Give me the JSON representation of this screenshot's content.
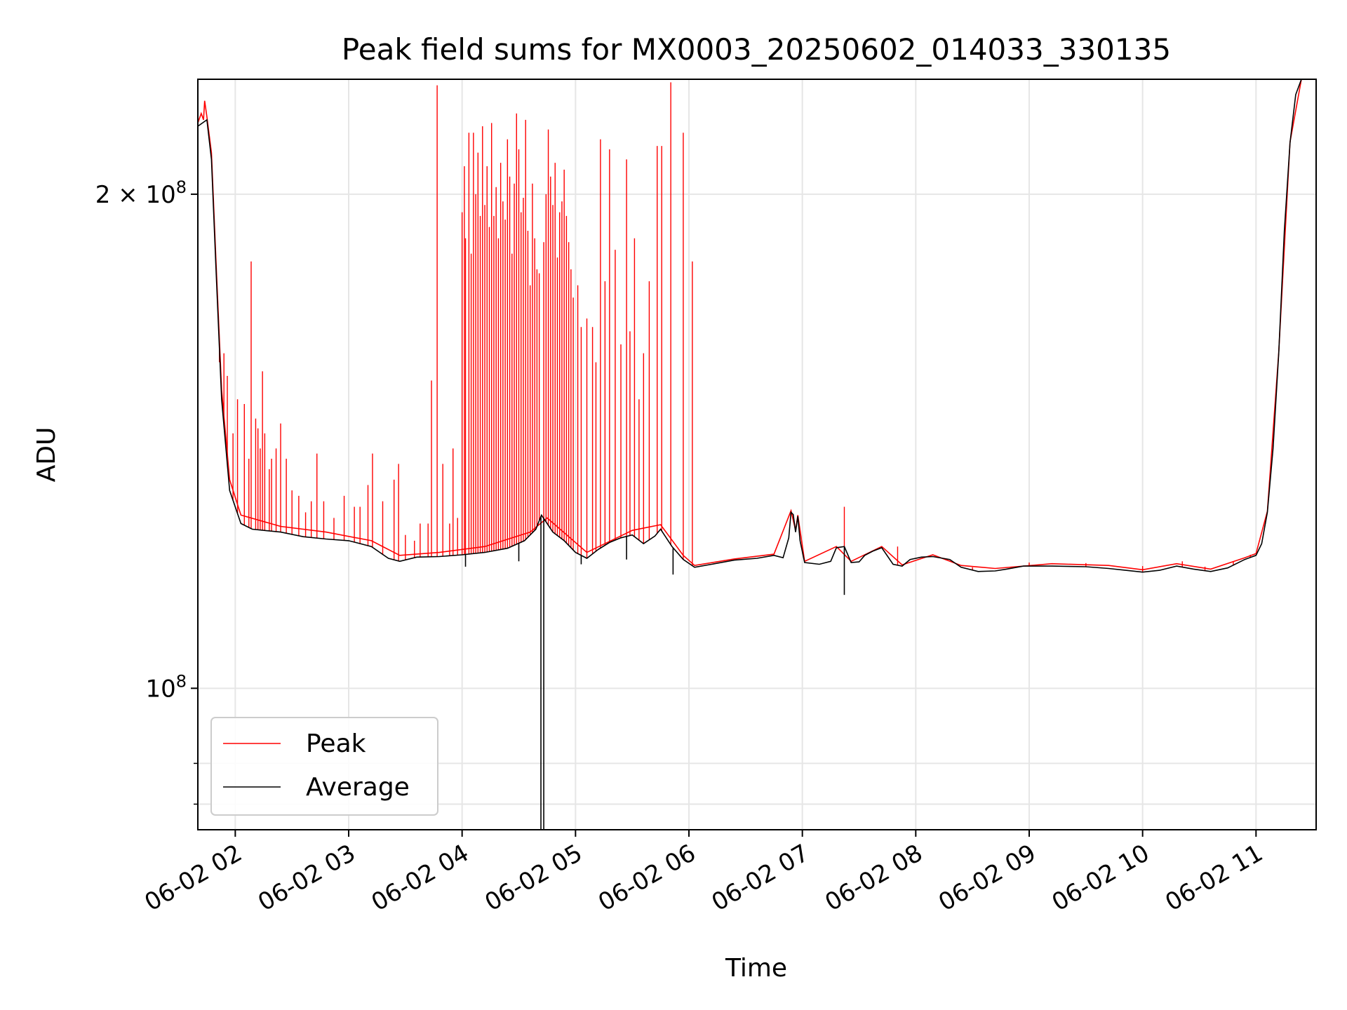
{
  "chart_data": {
    "type": "line",
    "title": "Peak field sums for MX0003_20250602_014033_330135",
    "xlabel": "Time",
    "ylabel": "ADU",
    "yscale": "log",
    "xlim": [
      1.67,
      11.53
    ],
    "ylim": [
      82000000,
      235000000
    ],
    "x_unit": "hours since 06-02 00:00",
    "grid": true,
    "legend_position": "lower-left",
    "x_ticks": [
      {
        "value": 2,
        "label": "06-02 02"
      },
      {
        "value": 3,
        "label": "06-02 03"
      },
      {
        "value": 4,
        "label": "06-02 04"
      },
      {
        "value": 5,
        "label": "06-02 05"
      },
      {
        "value": 6,
        "label": "06-02 06"
      },
      {
        "value": 7,
        "label": "06-02 07"
      },
      {
        "value": 8,
        "label": "06-02 08"
      },
      {
        "value": 9,
        "label": "06-02 09"
      },
      {
        "value": 10,
        "label": "06-02 10"
      },
      {
        "value": 11,
        "label": "06-02 11"
      }
    ],
    "y_major_ticks": [
      {
        "value": 100000000,
        "base": "10",
        "exp": "8",
        "coef": ""
      },
      {
        "value": 200000000,
        "base": "10",
        "exp": "8",
        "coef": "2 × "
      }
    ],
    "y_minor_ticks": [
      90000000,
      85000000
    ],
    "series": [
      {
        "name": "Average",
        "color": "#000000",
        "points": [
          [
            1.67,
            220000000
          ],
          [
            1.75,
            222000000
          ],
          [
            1.79,
            210000000
          ],
          [
            1.83,
            180000000
          ],
          [
            1.88,
            150000000
          ],
          [
            1.95,
            132000000
          ],
          [
            2.05,
            126000000
          ],
          [
            2.15,
            125000000
          ],
          [
            2.4,
            124500000
          ],
          [
            2.6,
            123700000
          ],
          [
            2.8,
            123300000
          ],
          [
            3.0,
            123000000
          ],
          [
            3.2,
            122000000
          ],
          [
            3.35,
            120000000
          ],
          [
            3.45,
            119500000
          ],
          [
            3.6,
            120200000
          ],
          [
            3.8,
            120300000
          ],
          [
            4.0,
            120600000
          ],
          [
            4.2,
            121000000
          ],
          [
            4.4,
            121700000
          ],
          [
            4.55,
            123000000
          ],
          [
            4.65,
            125000000
          ],
          [
            4.7,
            127500000
          ],
          [
            4.75,
            126000000
          ],
          [
            4.8,
            124500000
          ],
          [
            4.9,
            123000000
          ],
          [
            5.0,
            121000000
          ],
          [
            5.1,
            120000000
          ],
          [
            5.2,
            121500000
          ],
          [
            5.3,
            122700000
          ],
          [
            5.4,
            123500000
          ],
          [
            5.5,
            124000000
          ],
          [
            5.6,
            122500000
          ],
          [
            5.7,
            123800000
          ],
          [
            5.75,
            125000000
          ],
          [
            5.85,
            122000000
          ],
          [
            5.95,
            119800000
          ],
          [
            6.05,
            118500000
          ],
          [
            6.2,
            119000000
          ],
          [
            6.4,
            119700000
          ],
          [
            6.6,
            120000000
          ],
          [
            6.75,
            120500000
          ],
          [
            6.83,
            120100000
          ],
          [
            6.88,
            123500000
          ],
          [
            6.9,
            128000000
          ],
          [
            6.92,
            127600000
          ],
          [
            6.94,
            124500000
          ],
          [
            6.96,
            127300000
          ],
          [
            6.98,
            123000000
          ],
          [
            7.02,
            119300000
          ],
          [
            7.15,
            119000000
          ],
          [
            7.25,
            119500000
          ],
          [
            7.3,
            121800000
          ],
          [
            7.37,
            122000000
          ],
          [
            7.43,
            119300000
          ],
          [
            7.5,
            119400000
          ],
          [
            7.55,
            120500000
          ],
          [
            7.62,
            121200000
          ],
          [
            7.7,
            121800000
          ],
          [
            7.8,
            119000000
          ],
          [
            7.88,
            118700000
          ],
          [
            7.95,
            119800000
          ],
          [
            8.05,
            120200000
          ],
          [
            8.15,
            120300000
          ],
          [
            8.3,
            119800000
          ],
          [
            8.4,
            118500000
          ],
          [
            8.55,
            117800000
          ],
          [
            8.7,
            117900000
          ],
          [
            8.8,
            118200000
          ],
          [
            8.95,
            118700000
          ],
          [
            9.2,
            118700000
          ],
          [
            9.5,
            118600000
          ],
          [
            9.7,
            118300000
          ],
          [
            9.85,
            118000000
          ],
          [
            10.0,
            117700000
          ],
          [
            10.15,
            118000000
          ],
          [
            10.3,
            118700000
          ],
          [
            10.45,
            118200000
          ],
          [
            10.6,
            117800000
          ],
          [
            10.75,
            118400000
          ],
          [
            10.9,
            119800000
          ],
          [
            11.0,
            120500000
          ],
          [
            11.05,
            122500000
          ],
          [
            11.1,
            128000000
          ],
          [
            11.15,
            140000000
          ],
          [
            11.2,
            160000000
          ],
          [
            11.25,
            190000000
          ],
          [
            11.3,
            215000000
          ],
          [
            11.35,
            230000000
          ],
          [
            11.4,
            236000000
          ],
          [
            11.53,
            236000000
          ]
        ]
      },
      {
        "name": "Peak",
        "color": "#ff0000",
        "points": [
          [
            1.67,
            221000000
          ],
          [
            1.7,
            224000000
          ],
          [
            1.72,
            222000000
          ],
          [
            1.73,
            228000000
          ],
          [
            1.75,
            223000000
          ],
          [
            1.79,
            212000000
          ],
          [
            1.83,
            182000000
          ],
          [
            1.88,
            152000000
          ],
          [
            1.95,
            134000000
          ],
          [
            2.05,
            127500000
          ],
          [
            2.4,
            125500000
          ],
          [
            2.8,
            124500000
          ],
          [
            3.2,
            123000000
          ],
          [
            3.45,
            120500000
          ],
          [
            3.8,
            121000000
          ],
          [
            4.2,
            122000000
          ],
          [
            4.6,
            124500000
          ],
          [
            4.75,
            127000000
          ],
          [
            5.1,
            121000000
          ],
          [
            5.5,
            124800000
          ],
          [
            5.75,
            125800000
          ],
          [
            5.95,
            120500000
          ],
          [
            6.05,
            118800000
          ],
          [
            6.4,
            119900000
          ],
          [
            6.75,
            120700000
          ],
          [
            6.9,
            128300000
          ],
          [
            6.94,
            124800000
          ],
          [
            6.96,
            127500000
          ],
          [
            7.02,
            119500000
          ],
          [
            7.3,
            122000000
          ],
          [
            7.43,
            119500000
          ],
          [
            7.7,
            122000000
          ],
          [
            7.88,
            118900000
          ],
          [
            8.15,
            120600000
          ],
          [
            8.4,
            118800000
          ],
          [
            8.7,
            118300000
          ],
          [
            9.2,
            119100000
          ],
          [
            9.7,
            118800000
          ],
          [
            10.0,
            118100000
          ],
          [
            10.3,
            119100000
          ],
          [
            10.6,
            118200000
          ],
          [
            10.9,
            120100000
          ],
          [
            11.0,
            120800000
          ],
          [
            11.1,
            128200000
          ],
          [
            11.2,
            160200000
          ],
          [
            11.3,
            215200000
          ],
          [
            11.4,
            236000000
          ],
          [
            11.53,
            236000000
          ]
        ],
        "spikes": [
          [
            1.86,
            158000000
          ],
          [
            1.9,
            160000000
          ],
          [
            1.93,
            155000000
          ],
          [
            1.98,
            143000000
          ],
          [
            2.02,
            150000000
          ],
          [
            2.08,
            149000000
          ],
          [
            2.12,
            138000000
          ],
          [
            2.14,
            182000000
          ],
          [
            2.18,
            146000000
          ],
          [
            2.2,
            144000000
          ],
          [
            2.22,
            140000000
          ],
          [
            2.24,
            156000000
          ],
          [
            2.26,
            143000000
          ],
          [
            2.3,
            136000000
          ],
          [
            2.32,
            138000000
          ],
          [
            2.36,
            140000000
          ],
          [
            2.4,
            145000000
          ],
          [
            2.45,
            138000000
          ],
          [
            2.5,
            132000000
          ],
          [
            2.56,
            131000000
          ],
          [
            2.62,
            128000000
          ],
          [
            2.67,
            130000000
          ],
          [
            2.72,
            139000000
          ],
          [
            2.78,
            130000000
          ],
          [
            2.87,
            127000000
          ],
          [
            2.96,
            131000000
          ],
          [
            3.05,
            129000000
          ],
          [
            3.1,
            129000000
          ],
          [
            3.17,
            133000000
          ],
          [
            3.21,
            139000000
          ],
          [
            3.3,
            130000000
          ],
          [
            3.4,
            134000000
          ],
          [
            3.44,
            137000000
          ],
          [
            3.5,
            124000000
          ],
          [
            3.58,
            123000000
          ],
          [
            3.63,
            126000000
          ],
          [
            3.7,
            126000000
          ],
          [
            3.73,
            154000000
          ],
          [
            3.78,
            233000000
          ],
          [
            3.83,
            137000000
          ],
          [
            3.89,
            126000000
          ],
          [
            3.92,
            140000000
          ],
          [
            3.96,
            127000000
          ],
          [
            4.0,
            195000000
          ],
          [
            4.02,
            208000000
          ],
          [
            4.03,
            188000000
          ],
          [
            4.06,
            218000000
          ],
          [
            4.08,
            184000000
          ],
          [
            4.1,
            218000000
          ],
          [
            4.12,
            200000000
          ],
          [
            4.14,
            212000000
          ],
          [
            4.16,
            194000000
          ],
          [
            4.18,
            220000000
          ],
          [
            4.2,
            197000000
          ],
          [
            4.22,
            208000000
          ],
          [
            4.24,
            191000000
          ],
          [
            4.26,
            221000000
          ],
          [
            4.28,
            194000000
          ],
          [
            4.3,
            202000000
          ],
          [
            4.32,
            188000000
          ],
          [
            4.34,
            209000000
          ],
          [
            4.36,
            198000000
          ],
          [
            4.38,
            193000000
          ],
          [
            4.4,
            216000000
          ],
          [
            4.42,
            205000000
          ],
          [
            4.44,
            184000000
          ],
          [
            4.46,
            203000000
          ],
          [
            4.48,
            224000000
          ],
          [
            4.5,
            213000000
          ],
          [
            4.52,
            195000000
          ],
          [
            4.54,
            199000000
          ],
          [
            4.56,
            222000000
          ],
          [
            4.58,
            190000000
          ],
          [
            4.6,
            176000000
          ],
          [
            4.62,
            203000000
          ],
          [
            4.64,
            188000000
          ],
          [
            4.66,
            180000000
          ],
          [
            4.68,
            179000000
          ],
          [
            4.72,
            187000000
          ],
          [
            4.74,
            200000000
          ],
          [
            4.76,
            219000000
          ],
          [
            4.78,
            205000000
          ],
          [
            4.8,
            197000000
          ],
          [
            4.82,
            209000000
          ],
          [
            4.84,
            183000000
          ],
          [
            4.86,
            195000000
          ],
          [
            4.88,
            198000000
          ],
          [
            4.9,
            207000000
          ],
          [
            4.92,
            194000000
          ],
          [
            4.94,
            187000000
          ],
          [
            4.96,
            180000000
          ],
          [
            4.98,
            173000000
          ],
          [
            5.02,
            176000000
          ],
          [
            5.05,
            166000000
          ],
          [
            5.1,
            168000000
          ],
          [
            5.15,
            166000000
          ],
          [
            5.18,
            158000000
          ],
          [
            5.22,
            216000000
          ],
          [
            5.26,
            177000000
          ],
          [
            5.3,
            213000000
          ],
          [
            5.35,
            185000000
          ],
          [
            5.4,
            162000000
          ],
          [
            5.45,
            210000000
          ],
          [
            5.48,
            165000000
          ],
          [
            5.52,
            188000000
          ],
          [
            5.56,
            150000000
          ],
          [
            5.6,
            160000000
          ],
          [
            5.65,
            177000000
          ],
          [
            5.72,
            214000000
          ],
          [
            5.76,
            214000000
          ],
          [
            5.84,
            234000000
          ],
          [
            5.95,
            218000000
          ],
          [
            6.03,
            182000000
          ],
          [
            7.37,
            129000000
          ],
          [
            7.84,
            122000000
          ],
          [
            8.5,
            118500000
          ],
          [
            9.0,
            119300000
          ],
          [
            9.5,
            119200000
          ],
          [
            10.0,
            118700000
          ],
          [
            10.35,
            119500000
          ],
          [
            10.55,
            118600000
          ],
          [
            10.8,
            119400000
          ],
          [
            10.95,
            120600000
          ]
        ],
        "dips": [
          [
            4.695,
            82000000
          ],
          [
            4.72,
            82000000
          ],
          [
            4.03,
            118600000
          ],
          [
            5.05,
            119000000
          ],
          [
            5.45,
            119800000
          ],
          [
            5.86,
            117300000
          ],
          [
            7.37,
            114000000
          ],
          [
            4.5,
            119500000
          ]
        ]
      }
    ]
  }
}
